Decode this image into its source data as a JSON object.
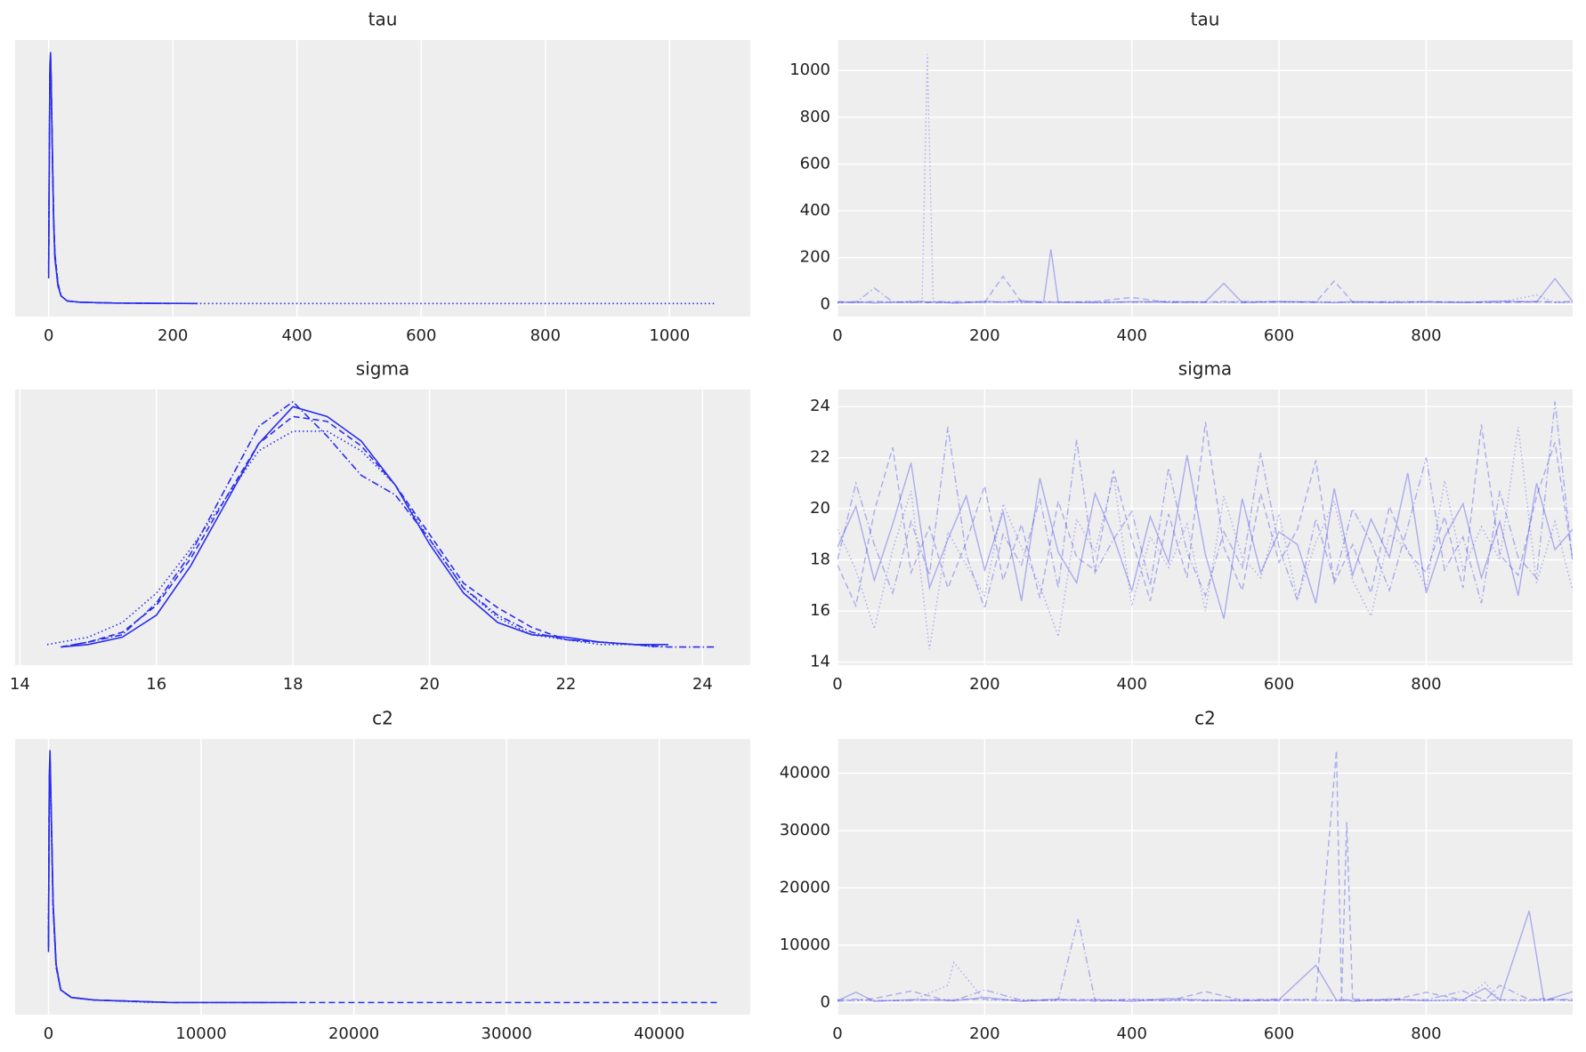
{
  "chart_data": [
    {
      "type": "kde",
      "title": "tau",
      "xlim": [
        -54,
        1130
      ],
      "xticks": [
        0,
        200,
        400,
        600,
        800,
        1000
      ],
      "ylim": [
        -0.052,
        1.048
      ],
      "grid": true,
      "color": "#2a2eec",
      "opacity": 1,
      "series": [
        {
          "linestyle": "solid",
          "x": [
            0,
            1,
            2,
            3,
            4,
            6,
            8,
            10,
            15,
            20,
            30,
            50,
            100,
            240
          ],
          "values": [
            0.1,
            0.6,
            0.95,
            1.0,
            0.9,
            0.6,
            0.33,
            0.18,
            0.07,
            0.03,
            0.01,
            0.005,
            0.002,
            0
          ]
        },
        {
          "linestyle": "dashed",
          "x": [
            0,
            1,
            2,
            3,
            4,
            6,
            8,
            10,
            15,
            20,
            30,
            50,
            100,
            200
          ],
          "values": [
            0.15,
            0.55,
            0.9,
            0.97,
            0.88,
            0.6,
            0.35,
            0.2,
            0.08,
            0.03,
            0.01,
            0.005,
            0.002,
            0
          ]
        },
        {
          "linestyle": "dotted",
          "x": [
            0,
            1,
            2,
            3,
            4,
            6,
            8,
            10,
            15,
            20,
            30,
            50,
            100,
            240,
            600,
            1075
          ],
          "values": [
            0.2,
            0.6,
            0.92,
            0.98,
            0.9,
            0.58,
            0.33,
            0.2,
            0.08,
            0.03,
            0.01,
            0.005,
            0.002,
            0,
            0,
            0
          ]
        },
        {
          "linestyle": "dashdot",
          "x": [
            0,
            1,
            2,
            3,
            4,
            6,
            8,
            10,
            15,
            20,
            30,
            50,
            100,
            180
          ],
          "values": [
            0.12,
            0.58,
            0.93,
            0.99,
            0.89,
            0.59,
            0.34,
            0.19,
            0.07,
            0.03,
            0.01,
            0.005,
            0.002,
            0
          ]
        }
      ]
    },
    {
      "type": "trace",
      "title": "tau",
      "xlim": [
        0,
        999
      ],
      "xticks": [
        0,
        200,
        400,
        600,
        800
      ],
      "ylim": [
        -52,
        1130
      ],
      "yticks": [
        0,
        200,
        400,
        600,
        800,
        1000
      ],
      "grid": true,
      "color": "#2a2eec",
      "opacity": 0.35,
      "x": [
        0,
        25,
        50,
        75,
        100,
        115,
        122,
        130,
        160,
        200,
        225,
        250,
        280,
        290,
        300,
        350,
        400,
        450,
        500,
        525,
        550,
        600,
        650,
        675,
        700,
        750,
        800,
        850,
        900,
        950,
        975,
        999
      ],
      "series": [
        {
          "linestyle": "solid",
          "values": [
            8,
            12,
            6,
            10,
            9,
            14,
            7,
            11,
            5,
            13,
            9,
            16,
            8,
            235,
            10,
            7,
            12,
            9,
            11,
            90,
            8,
            13,
            10,
            7,
            12,
            9,
            11,
            8,
            14,
            10,
            110,
            12
          ]
        },
        {
          "linestyle": "dashed",
          "values": [
            10,
            7,
            13,
            9,
            12,
            8,
            10,
            6,
            12,
            9,
            120,
            10,
            7,
            11,
            9,
            12,
            30,
            8,
            10,
            13,
            7,
            11,
            9,
            100,
            10,
            8,
            12,
            9,
            7,
            11,
            10,
            13
          ]
        },
        {
          "linestyle": "dotted",
          "values": [
            6,
            9,
            11,
            8,
            13,
            10,
            1070,
            9,
            7,
            12,
            10,
            8,
            11,
            9,
            12,
            7,
            10,
            13,
            8,
            10,
            11,
            9,
            12,
            8,
            10,
            7,
            9,
            11,
            10,
            40,
            8,
            9
          ]
        },
        {
          "linestyle": "dashdot",
          "values": [
            12,
            8,
            70,
            11,
            7,
            10,
            9,
            13,
            10,
            8,
            11,
            9,
            12,
            10,
            8,
            11,
            9,
            12,
            10,
            8,
            13,
            10,
            9,
            11,
            8,
            12,
            10,
            9,
            11,
            13,
            9,
            10
          ]
        }
      ]
    },
    {
      "type": "kde",
      "title": "sigma",
      "xlim": [
        13.93,
        24.7
      ],
      "xticks": [
        14,
        16,
        18,
        20,
        22,
        24
      ],
      "ylim": [
        -0.074,
        1.05
      ],
      "grid": true,
      "color": "#2a2eec",
      "opacity": 1,
      "series": [
        {
          "linestyle": "solid",
          "x": [
            14.6,
            15,
            15.5,
            16,
            16.5,
            17,
            17.5,
            18,
            18.5,
            19,
            19.5,
            20,
            20.5,
            21,
            21.5,
            22,
            22.5,
            23,
            23.5
          ],
          "values": [
            0,
            0.01,
            0.04,
            0.13,
            0.33,
            0.58,
            0.83,
            0.98,
            0.94,
            0.84,
            0.66,
            0.42,
            0.22,
            0.1,
            0.05,
            0.04,
            0.02,
            0.01,
            0.01
          ]
        },
        {
          "linestyle": "dashed",
          "x": [
            14.6,
            15,
            15.5,
            16,
            16.5,
            17,
            17.5,
            18,
            18.5,
            19,
            19.5,
            20,
            20.5,
            21,
            21.5,
            22,
            22.5,
            23,
            23.4
          ],
          "values": [
            0,
            0.02,
            0.06,
            0.17,
            0.36,
            0.6,
            0.83,
            0.94,
            0.92,
            0.82,
            0.66,
            0.46,
            0.26,
            0.16,
            0.08,
            0.03,
            0.02,
            0.01,
            0
          ]
        },
        {
          "linestyle": "dotted",
          "x": [
            14.4,
            15,
            15.5,
            16,
            16.5,
            17,
            17.5,
            18,
            18.5,
            19,
            19.5,
            20,
            20.5,
            21,
            21.5,
            22,
            22.5,
            23,
            23.3
          ],
          "values": [
            0.01,
            0.04,
            0.1,
            0.22,
            0.4,
            0.6,
            0.8,
            0.88,
            0.88,
            0.8,
            0.66,
            0.44,
            0.24,
            0.12,
            0.05,
            0.03,
            0.01,
            0.01,
            0
          ]
        },
        {
          "linestyle": "dashdot",
          "x": [
            14.6,
            15,
            15.5,
            16,
            16.5,
            17,
            17.5,
            18,
            18.5,
            19,
            19.5,
            20,
            20.5,
            21,
            21.5,
            22,
            22.5,
            23,
            23.5,
            24.2
          ],
          "values": [
            0,
            0.02,
            0.05,
            0.18,
            0.38,
            0.64,
            0.9,
            1.0,
            0.86,
            0.7,
            0.62,
            0.44,
            0.24,
            0.13,
            0.06,
            0.03,
            0.02,
            0.01,
            0,
            0
          ]
        }
      ]
    },
    {
      "type": "trace",
      "title": "sigma",
      "xlim": [
        0,
        999
      ],
      "xticks": [
        0,
        200,
        400,
        600,
        800
      ],
      "ylim": [
        13.88,
        24.67
      ],
      "yticks": [
        14,
        16,
        18,
        20,
        22,
        24
      ],
      "grid": true,
      "color": "#2a2eec",
      "opacity": 0.35,
      "x": [
        0,
        25,
        50,
        75,
        100,
        125,
        150,
        175,
        200,
        225,
        250,
        275,
        300,
        325,
        350,
        375,
        400,
        425,
        450,
        475,
        500,
        525,
        550,
        575,
        600,
        625,
        650,
        675,
        700,
        725,
        750,
        775,
        800,
        825,
        850,
        875,
        900,
        925,
        950,
        975,
        999
      ],
      "series": [
        {
          "linestyle": "solid",
          "values": [
            18.5,
            20.1,
            17.2,
            19.4,
            21.8,
            16.9,
            18.8,
            20.5,
            17.6,
            19.9,
            16.4,
            21.2,
            18.3,
            17.1,
            20.6,
            18.9,
            16.8,
            19.7,
            17.9,
            22.1,
            18.2,
            15.7,
            20.4,
            17.5,
            19.1,
            18.6,
            16.3,
            20.8,
            17.4,
            19.6,
            18.1,
            21.4,
            16.7,
            18.9,
            20.2,
            17.3,
            19.5,
            16.6,
            21.0,
            18.4,
            19.2
          ]
        },
        {
          "linestyle": "dashed",
          "values": [
            17.8,
            16.2,
            19.9,
            22.4,
            17.5,
            19.3,
            16.9,
            18.7,
            20.9,
            17.2,
            19.4,
            16.5,
            20.3,
            18.1,
            17.6,
            21.5,
            18.8,
            16.4,
            19.8,
            17.3,
            23.4,
            18.5,
            16.8,
            20.6,
            17.9,
            19.2,
            21.9,
            17.1,
            18.6,
            16.7,
            20.1,
            18.3,
            17.5,
            19.7,
            16.9,
            23.3,
            18.2,
            17.4,
            20.5,
            22.6,
            18.0
          ]
        },
        {
          "linestyle": "dotted",
          "values": [
            19.2,
            17.6,
            15.3,
            18.4,
            20.7,
            14.5,
            19.1,
            17.8,
            16.6,
            20.2,
            18.5,
            17.0,
            15.0,
            19.6,
            18.3,
            21.3,
            16.2,
            18.9,
            17.7,
            19.4,
            16.0,
            20.5,
            18.1,
            17.3,
            19.8,
            16.5,
            18.7,
            20.3,
            17.2,
            15.8,
            19.0,
            18.4,
            16.9,
            21.1,
            17.6,
            19.3,
            18.0,
            23.2,
            17.1,
            19.5,
            16.8
          ]
        },
        {
          "linestyle": "dashdot",
          "values": [
            18.0,
            21.0,
            18.6,
            16.7,
            19.5,
            17.4,
            23.2,
            18.2,
            16.1,
            19.0,
            17.8,
            20.4,
            16.9,
            22.7,
            17.5,
            18.8,
            19.9,
            17.0,
            21.6,
            18.3,
            16.6,
            19.1,
            17.7,
            22.2,
            18.5,
            16.4,
            19.6,
            17.2,
            20.0,
            18.7,
            16.8,
            19.3,
            22.0,
            17.6,
            18.9,
            16.3,
            20.7,
            18.1,
            17.3,
            24.2,
            17.9
          ]
        }
      ]
    },
    {
      "type": "kde",
      "title": "c2",
      "xlim": [
        -2185,
        45960
      ],
      "xticks": [
        0,
        10000,
        20000,
        30000,
        40000
      ],
      "ylim": [
        -0.048,
        1.044
      ],
      "grid": true,
      "color": "#2a2eec",
      "opacity": 1,
      "series": [
        {
          "linestyle": "solid",
          "x": [
            0,
            50,
            100,
            200,
            300,
            500,
            800,
            1500,
            3000,
            8000,
            16300
          ],
          "values": [
            0.2,
            0.9,
            1.0,
            0.7,
            0.4,
            0.15,
            0.05,
            0.02,
            0.01,
            0,
            0
          ]
        },
        {
          "linestyle": "dashed",
          "x": [
            0,
            50,
            100,
            200,
            300,
            500,
            800,
            1500,
            3000,
            8000,
            20000,
            43800
          ],
          "values": [
            0.25,
            0.85,
            0.95,
            0.68,
            0.38,
            0.14,
            0.05,
            0.02,
            0.01,
            0,
            0,
            0
          ]
        },
        {
          "linestyle": "dotted",
          "x": [
            0,
            50,
            100,
            200,
            300,
            500,
            800,
            1500,
            3000,
            7000
          ],
          "values": [
            0.3,
            0.8,
            0.9,
            0.65,
            0.37,
            0.14,
            0.05,
            0.02,
            0.01,
            0
          ]
        },
        {
          "linestyle": "dashdot",
          "x": [
            0,
            50,
            100,
            200,
            300,
            500,
            800,
            1500,
            3000,
            8000,
            14500
          ],
          "values": [
            0.22,
            0.88,
            0.97,
            0.69,
            0.39,
            0.15,
            0.05,
            0.02,
            0.01,
            0,
            0
          ]
        }
      ]
    },
    {
      "type": "trace",
      "title": "c2",
      "xlim": [
        0,
        999
      ],
      "xticks": [
        0,
        200,
        400,
        600,
        800
      ],
      "ylim": [
        -2115,
        45990
      ],
      "yticks": [
        0,
        10000,
        20000,
        30000,
        40000
      ],
      "grid": true,
      "color": "#2a2eec",
      "opacity": 0.35,
      "x": [
        0,
        25,
        50,
        100,
        150,
        158,
        200,
        250,
        300,
        327,
        350,
        400,
        450,
        500,
        550,
        600,
        650,
        678,
        685,
        692,
        700,
        750,
        800,
        850,
        880,
        900,
        940,
        960,
        999
      ],
      "series": [
        {
          "linestyle": "solid",
          "values": [
            300,
            1800,
            200,
            500,
            400,
            300,
            900,
            200,
            600,
            300,
            500,
            200,
            700,
            400,
            300,
            500,
            6500,
            400,
            300,
            500,
            200,
            600,
            300,
            500,
            2500,
            400,
            16000,
            300,
            1900
          ]
        },
        {
          "linestyle": "dashed",
          "values": [
            200,
            400,
            700,
            2000,
            300,
            500,
            600,
            300,
            400,
            600,
            200,
            500,
            300,
            1900,
            400,
            300,
            600,
            44000,
            500,
            31500,
            400,
            300,
            1800,
            400,
            300,
            500,
            400,
            700,
            300
          ]
        },
        {
          "linestyle": "dotted",
          "values": [
            500,
            300,
            400,
            300,
            3000,
            7000,
            400,
            500,
            300,
            400,
            600,
            300,
            400,
            500,
            300,
            400,
            500,
            300,
            600,
            400,
            300,
            500,
            400,
            300,
            3500,
            400,
            300,
            500,
            400
          ]
        },
        {
          "linestyle": "dashdot",
          "values": [
            400,
            600,
            300,
            400,
            500,
            300,
            2200,
            400,
            500,
            14500,
            300,
            600,
            400,
            300,
            500,
            600,
            300,
            400,
            500,
            300,
            600,
            400,
            500,
            2000,
            400,
            3000,
            500,
            400,
            600
          ]
        }
      ]
    }
  ]
}
